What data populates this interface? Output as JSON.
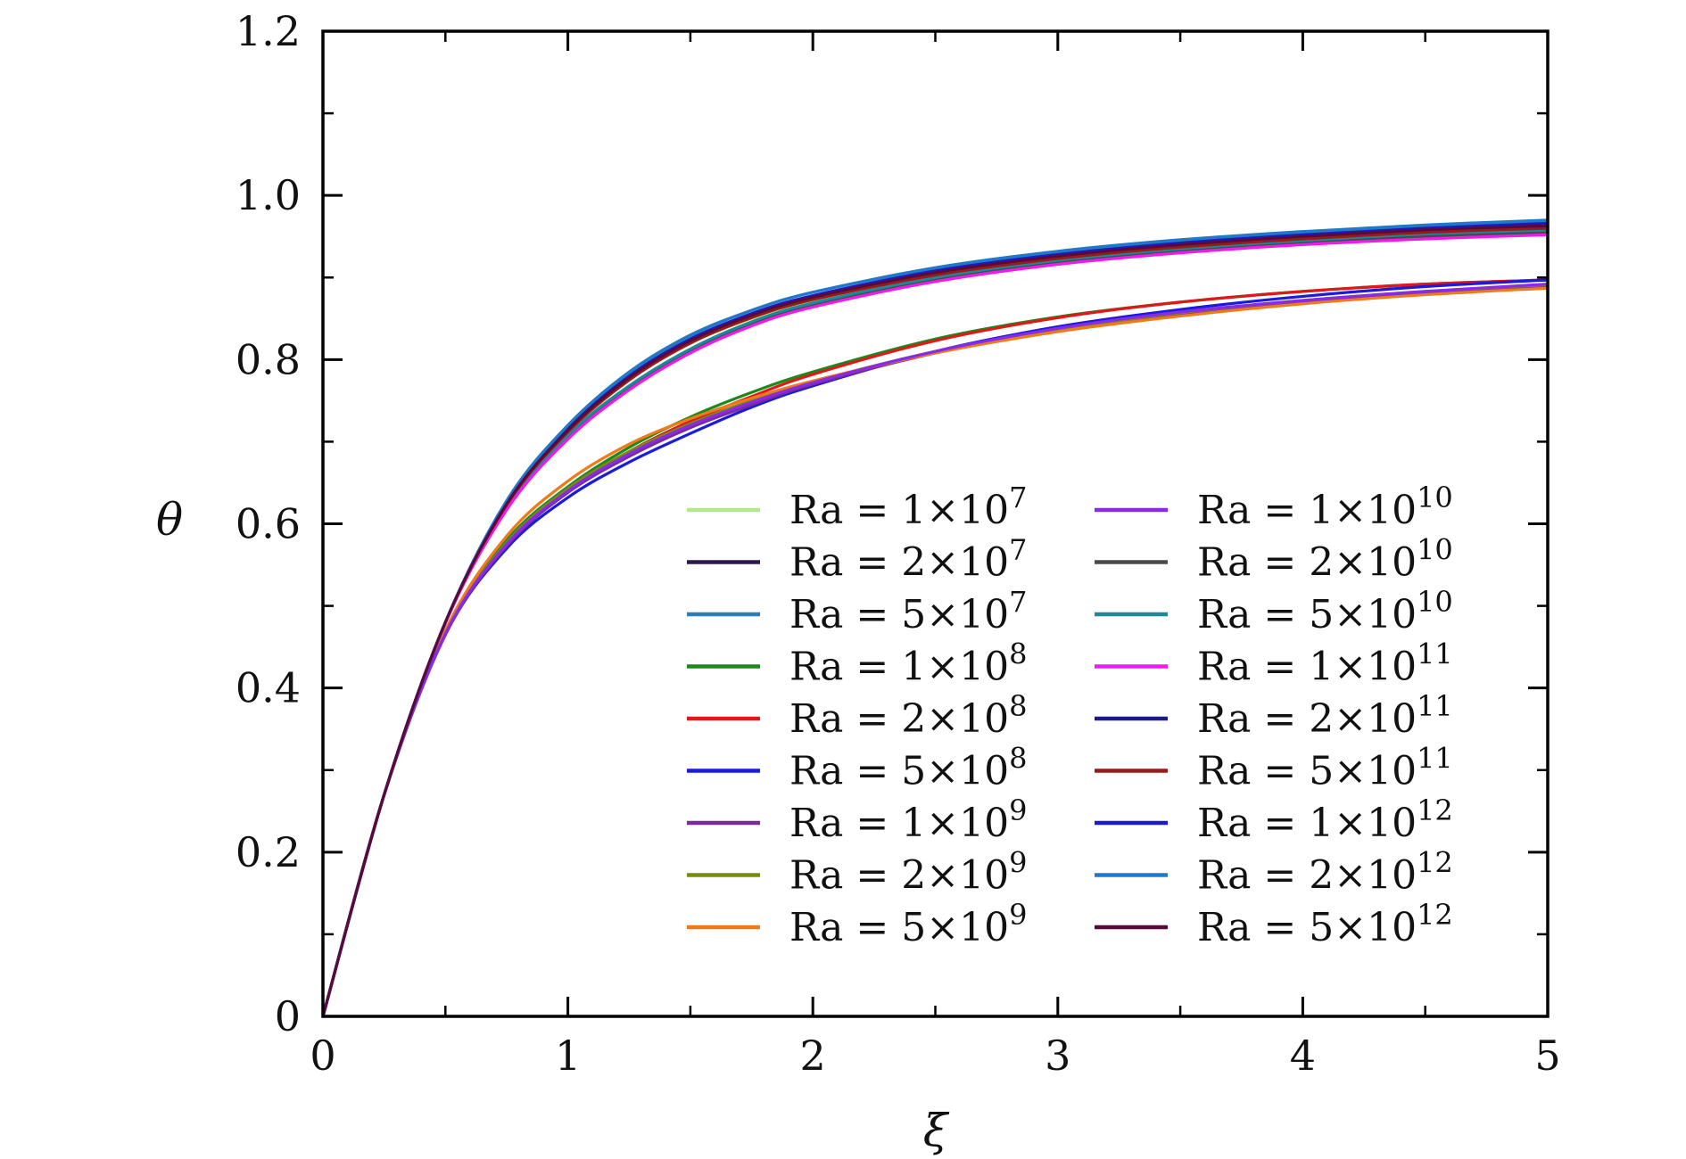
{
  "chart_data": {
    "type": "line",
    "title": "",
    "xlabel": "ξ",
    "ylabel": "θ",
    "xlim": [
      0,
      5
    ],
    "ylim": [
      0,
      1.2
    ],
    "x_ticks": [
      "0",
      "1",
      "2",
      "3",
      "4",
      "5"
    ],
    "y_ticks": [
      "0",
      "0.2",
      "0.4",
      "0.6",
      "0.8",
      "1.0",
      "1.2"
    ],
    "grid": false,
    "legend_position": "bottom-right",
    "legend_columns": 2,
    "x": [
      0,
      0.25,
      0.5,
      0.75,
      1,
      1.25,
      1.5,
      1.75,
      2,
      2.5,
      3,
      3.5,
      4,
      4.5,
      5
    ],
    "series": [
      {
        "name": "Ra = 1×10^7",
        "legend_base": "Ra = 1×10",
        "legend_exp": "7",
        "color": "#b2e88a",
        "values": [
          0,
          0.27,
          0.48,
          0.62,
          0.71,
          0.775,
          0.82,
          0.85,
          0.872,
          0.902,
          0.922,
          0.936,
          0.946,
          0.953,
          0.958
        ]
      },
      {
        "name": "Ra = 2×10^7",
        "legend_base": "Ra = 2×10",
        "legend_exp": "7",
        "color": "#2e1650",
        "values": [
          0,
          0.27,
          0.48,
          0.625,
          0.715,
          0.78,
          0.825,
          0.855,
          0.877,
          0.907,
          0.927,
          0.941,
          0.951,
          0.959,
          0.965
        ]
      },
      {
        "name": "Ra = 5×10^7",
        "legend_base": "Ra = 5×10",
        "legend_exp": "7",
        "color": "#2a7fb8",
        "values": [
          0,
          0.27,
          0.48,
          0.628,
          0.72,
          0.785,
          0.83,
          0.86,
          0.882,
          0.911,
          0.931,
          0.945,
          0.955,
          0.963,
          0.969
        ]
      },
      {
        "name": "Ra = 1×10^8",
        "legend_base": "Ra = 1×10",
        "legend_exp": "8",
        "color": "#1a8a1a",
        "values": [
          0,
          0.27,
          0.47,
          0.58,
          0.645,
          0.693,
          0.73,
          0.76,
          0.785,
          0.825,
          0.852,
          0.87,
          0.883,
          0.892,
          0.897
        ]
      },
      {
        "name": "Ra = 2×10^8",
        "legend_base": "Ra = 2×10",
        "legend_exp": "8",
        "color": "#e01818",
        "values": [
          0,
          0.27,
          0.465,
          0.575,
          0.64,
          0.688,
          0.725,
          0.755,
          0.782,
          0.823,
          0.851,
          0.87,
          0.883,
          0.892,
          0.897
        ]
      },
      {
        "name": "Ra = 5×10^8",
        "legend_base": "Ra = 5×10",
        "legend_exp": "8",
        "color": "#1a1ae0",
        "values": [
          0,
          0.27,
          0.465,
          0.57,
          0.632,
          0.675,
          0.71,
          0.742,
          0.768,
          0.81,
          0.84,
          0.861,
          0.877,
          0.889,
          0.897
        ]
      },
      {
        "name": "Ra = 1×10^9",
        "legend_base": "Ra = 1×10",
        "legend_exp": "9",
        "color": "#7a2a9a",
        "values": [
          0,
          0.27,
          0.465,
          0.573,
          0.638,
          0.682,
          0.717,
          0.745,
          0.77,
          0.808,
          0.836,
          0.856,
          0.871,
          0.882,
          0.89
        ]
      },
      {
        "name": "Ra = 2×10^9",
        "legend_base": "Ra = 2×10",
        "legend_exp": "9",
        "color": "#7a8a10",
        "values": [
          0,
          0.27,
          0.467,
          0.577,
          0.643,
          0.688,
          0.722,
          0.75,
          0.773,
          0.81,
          0.837,
          0.857,
          0.872,
          0.883,
          0.891
        ]
      },
      {
        "name": "Ra = 5×10^9",
        "legend_base": "Ra = 5×10",
        "legend_exp": "9",
        "color": "#f07a1a",
        "values": [
          0,
          0.27,
          0.47,
          0.585,
          0.652,
          0.697,
          0.728,
          0.753,
          0.774,
          0.808,
          0.834,
          0.853,
          0.868,
          0.879,
          0.887
        ]
      },
      {
        "name": "Ra = 1×10^10",
        "legend_base": "Ra = 1×10",
        "legend_exp": "10",
        "color": "#8a2ae8",
        "values": [
          0,
          0.27,
          0.466,
          0.575,
          0.64,
          0.685,
          0.72,
          0.748,
          0.772,
          0.81,
          0.838,
          0.858,
          0.872,
          0.883,
          0.892
        ]
      },
      {
        "name": "Ra = 2×10^10",
        "legend_base": "Ra = 2×10",
        "legend_exp": "10",
        "color": "#4a4a4a",
        "values": [
          0,
          0.27,
          0.48,
          0.618,
          0.705,
          0.765,
          0.81,
          0.843,
          0.866,
          0.897,
          0.918,
          0.932,
          0.942,
          0.95,
          0.955
        ]
      },
      {
        "name": "Ra = 5×10^10",
        "legend_base": "Ra = 5×10",
        "legend_exp": "10",
        "color": "#1a8a9a",
        "values": [
          0,
          0.27,
          0.48,
          0.62,
          0.708,
          0.768,
          0.813,
          0.846,
          0.869,
          0.9,
          0.921,
          0.935,
          0.945,
          0.953,
          0.958
        ]
      },
      {
        "name": "Ra = 1×10^11",
        "legend_base": "Ra = 1×10",
        "legend_exp": "11",
        "color": "#f01af0",
        "values": [
          0,
          0.27,
          0.479,
          0.617,
          0.703,
          0.763,
          0.808,
          0.841,
          0.864,
          0.895,
          0.916,
          0.93,
          0.94,
          0.947,
          0.952
        ]
      },
      {
        "name": "Ra = 2×10^11",
        "legend_base": "Ra = 2×10",
        "legend_exp": "11",
        "color": "#1a1a8a",
        "values": [
          0,
          0.27,
          0.48,
          0.624,
          0.714,
          0.777,
          0.822,
          0.853,
          0.875,
          0.905,
          0.925,
          0.939,
          0.949,
          0.957,
          0.962
        ]
      },
      {
        "name": "Ra = 5×10^11",
        "legend_base": "Ra = 5×10",
        "legend_exp": "11",
        "color": "#9a1a1a",
        "values": [
          0,
          0.27,
          0.48,
          0.623,
          0.712,
          0.775,
          0.82,
          0.851,
          0.873,
          0.903,
          0.923,
          0.937,
          0.947,
          0.955,
          0.96
        ]
      },
      {
        "name": "Ra = 1×10^12",
        "legend_base": "Ra = 1×10",
        "legend_exp": "12",
        "color": "#1a1acc",
        "values": [
          0,
          0.27,
          0.48,
          0.626,
          0.717,
          0.78,
          0.825,
          0.856,
          0.878,
          0.908,
          0.928,
          0.942,
          0.952,
          0.96,
          0.966
        ]
      },
      {
        "name": "Ra = 2×10^12",
        "legend_base": "Ra = 2×10",
        "legend_exp": "12",
        "color": "#1f78c8",
        "values": [
          0,
          0.27,
          0.48,
          0.628,
          0.72,
          0.784,
          0.829,
          0.86,
          0.882,
          0.912,
          0.932,
          0.946,
          0.956,
          0.964,
          0.97
        ]
      },
      {
        "name": "Ra = 5×10^12",
        "legend_base": "Ra = 5×10",
        "legend_exp": "12",
        "color": "#5a0a3a",
        "values": [
          0,
          0.27,
          0.48,
          0.624,
          0.714,
          0.778,
          0.823,
          0.854,
          0.876,
          0.906,
          0.926,
          0.94,
          0.95,
          0.958,
          0.963
        ]
      }
    ]
  }
}
